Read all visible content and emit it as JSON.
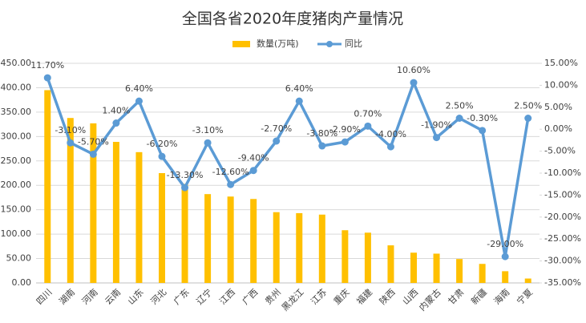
{
  "chart_data": {
    "type": "bar-line",
    "title": "全国各省2020年度猪肉产量情况",
    "categories": [
      "四川",
      "湖南",
      "河南",
      "云南",
      "山东",
      "河北",
      "广东",
      "辽宁",
      "江西",
      "广西",
      "贵州",
      "黑龙江",
      "江苏",
      "重庆",
      "福建",
      "陕西",
      "山西",
      "内蒙古",
      "甘肃",
      "新疆",
      "海南",
      "宁夏"
    ],
    "series": [
      {
        "name": "数量(万吨)",
        "type": "bar",
        "color": "#FFC000",
        "values": [
          395,
          338,
          327,
          289,
          268,
          225,
          203,
          182,
          177,
          172,
          145,
          143,
          140,
          108,
          103,
          77,
          62,
          60,
          49,
          39,
          24,
          9
        ]
      },
      {
        "name": "同比",
        "type": "line",
        "axis": "y2",
        "color": "#5B9BD5",
        "values": [
          11.7,
          -3.1,
          -5.7,
          1.4,
          6.4,
          -6.2,
          -13.3,
          -3.1,
          -12.6,
          -9.4,
          -2.7,
          6.4,
          -3.8,
          -2.9,
          0.7,
          -4.0,
          10.6,
          -1.9,
          2.5,
          -0.3,
          -29.0,
          2.5
        ],
        "value_labels": [
          "11.70%",
          "-3.10%",
          "-5.70%",
          "1.40%",
          "6.40%",
          "-6.20%",
          "-13.30%",
          "-3.10%",
          "-12.60%",
          "-9.40%",
          "-2.70%",
          "6.40%",
          "-3.80%",
          "-2.90%",
          "0.70%",
          "-4.00%",
          "10.60%",
          "-1.90%",
          "2.50%",
          "-0.30%",
          "-29.00%",
          "2.50%"
        ]
      }
    ],
    "ylim": [
      0,
      450
    ],
    "yticks": [
      {
        "value": 0,
        "label": "0.00"
      },
      {
        "value": 50,
        "label": "50.00"
      },
      {
        "value": 100,
        "label": "100.00"
      },
      {
        "value": 150,
        "label": "150.00"
      },
      {
        "value": 200,
        "label": "200.00"
      },
      {
        "value": 250,
        "label": "250.00"
      },
      {
        "value": 300,
        "label": "300.00"
      },
      {
        "value": 350,
        "label": "350.00"
      },
      {
        "value": 400,
        "label": "400.00"
      },
      {
        "value": 450,
        "label": "450.00"
      }
    ],
    "y2lim": [
      -35,
      15
    ],
    "y2ticks": [
      {
        "value": -35,
        "label": "-35.00%"
      },
      {
        "value": -30,
        "label": "-30.00%"
      },
      {
        "value": -25,
        "label": "-25.00%"
      },
      {
        "value": -20,
        "label": "-20.00%"
      },
      {
        "value": -15,
        "label": "-15.00%"
      },
      {
        "value": -10,
        "label": "-10.00%"
      },
      {
        "value": -5,
        "label": "-5.00%"
      },
      {
        "value": 0,
        "label": "0.00%"
      },
      {
        "value": 5,
        "label": "5.00%"
      },
      {
        "value": 10,
        "label": "10.00%"
      },
      {
        "value": 15,
        "label": "15.00%"
      }
    ],
    "grid": true,
    "legend": "top"
  }
}
